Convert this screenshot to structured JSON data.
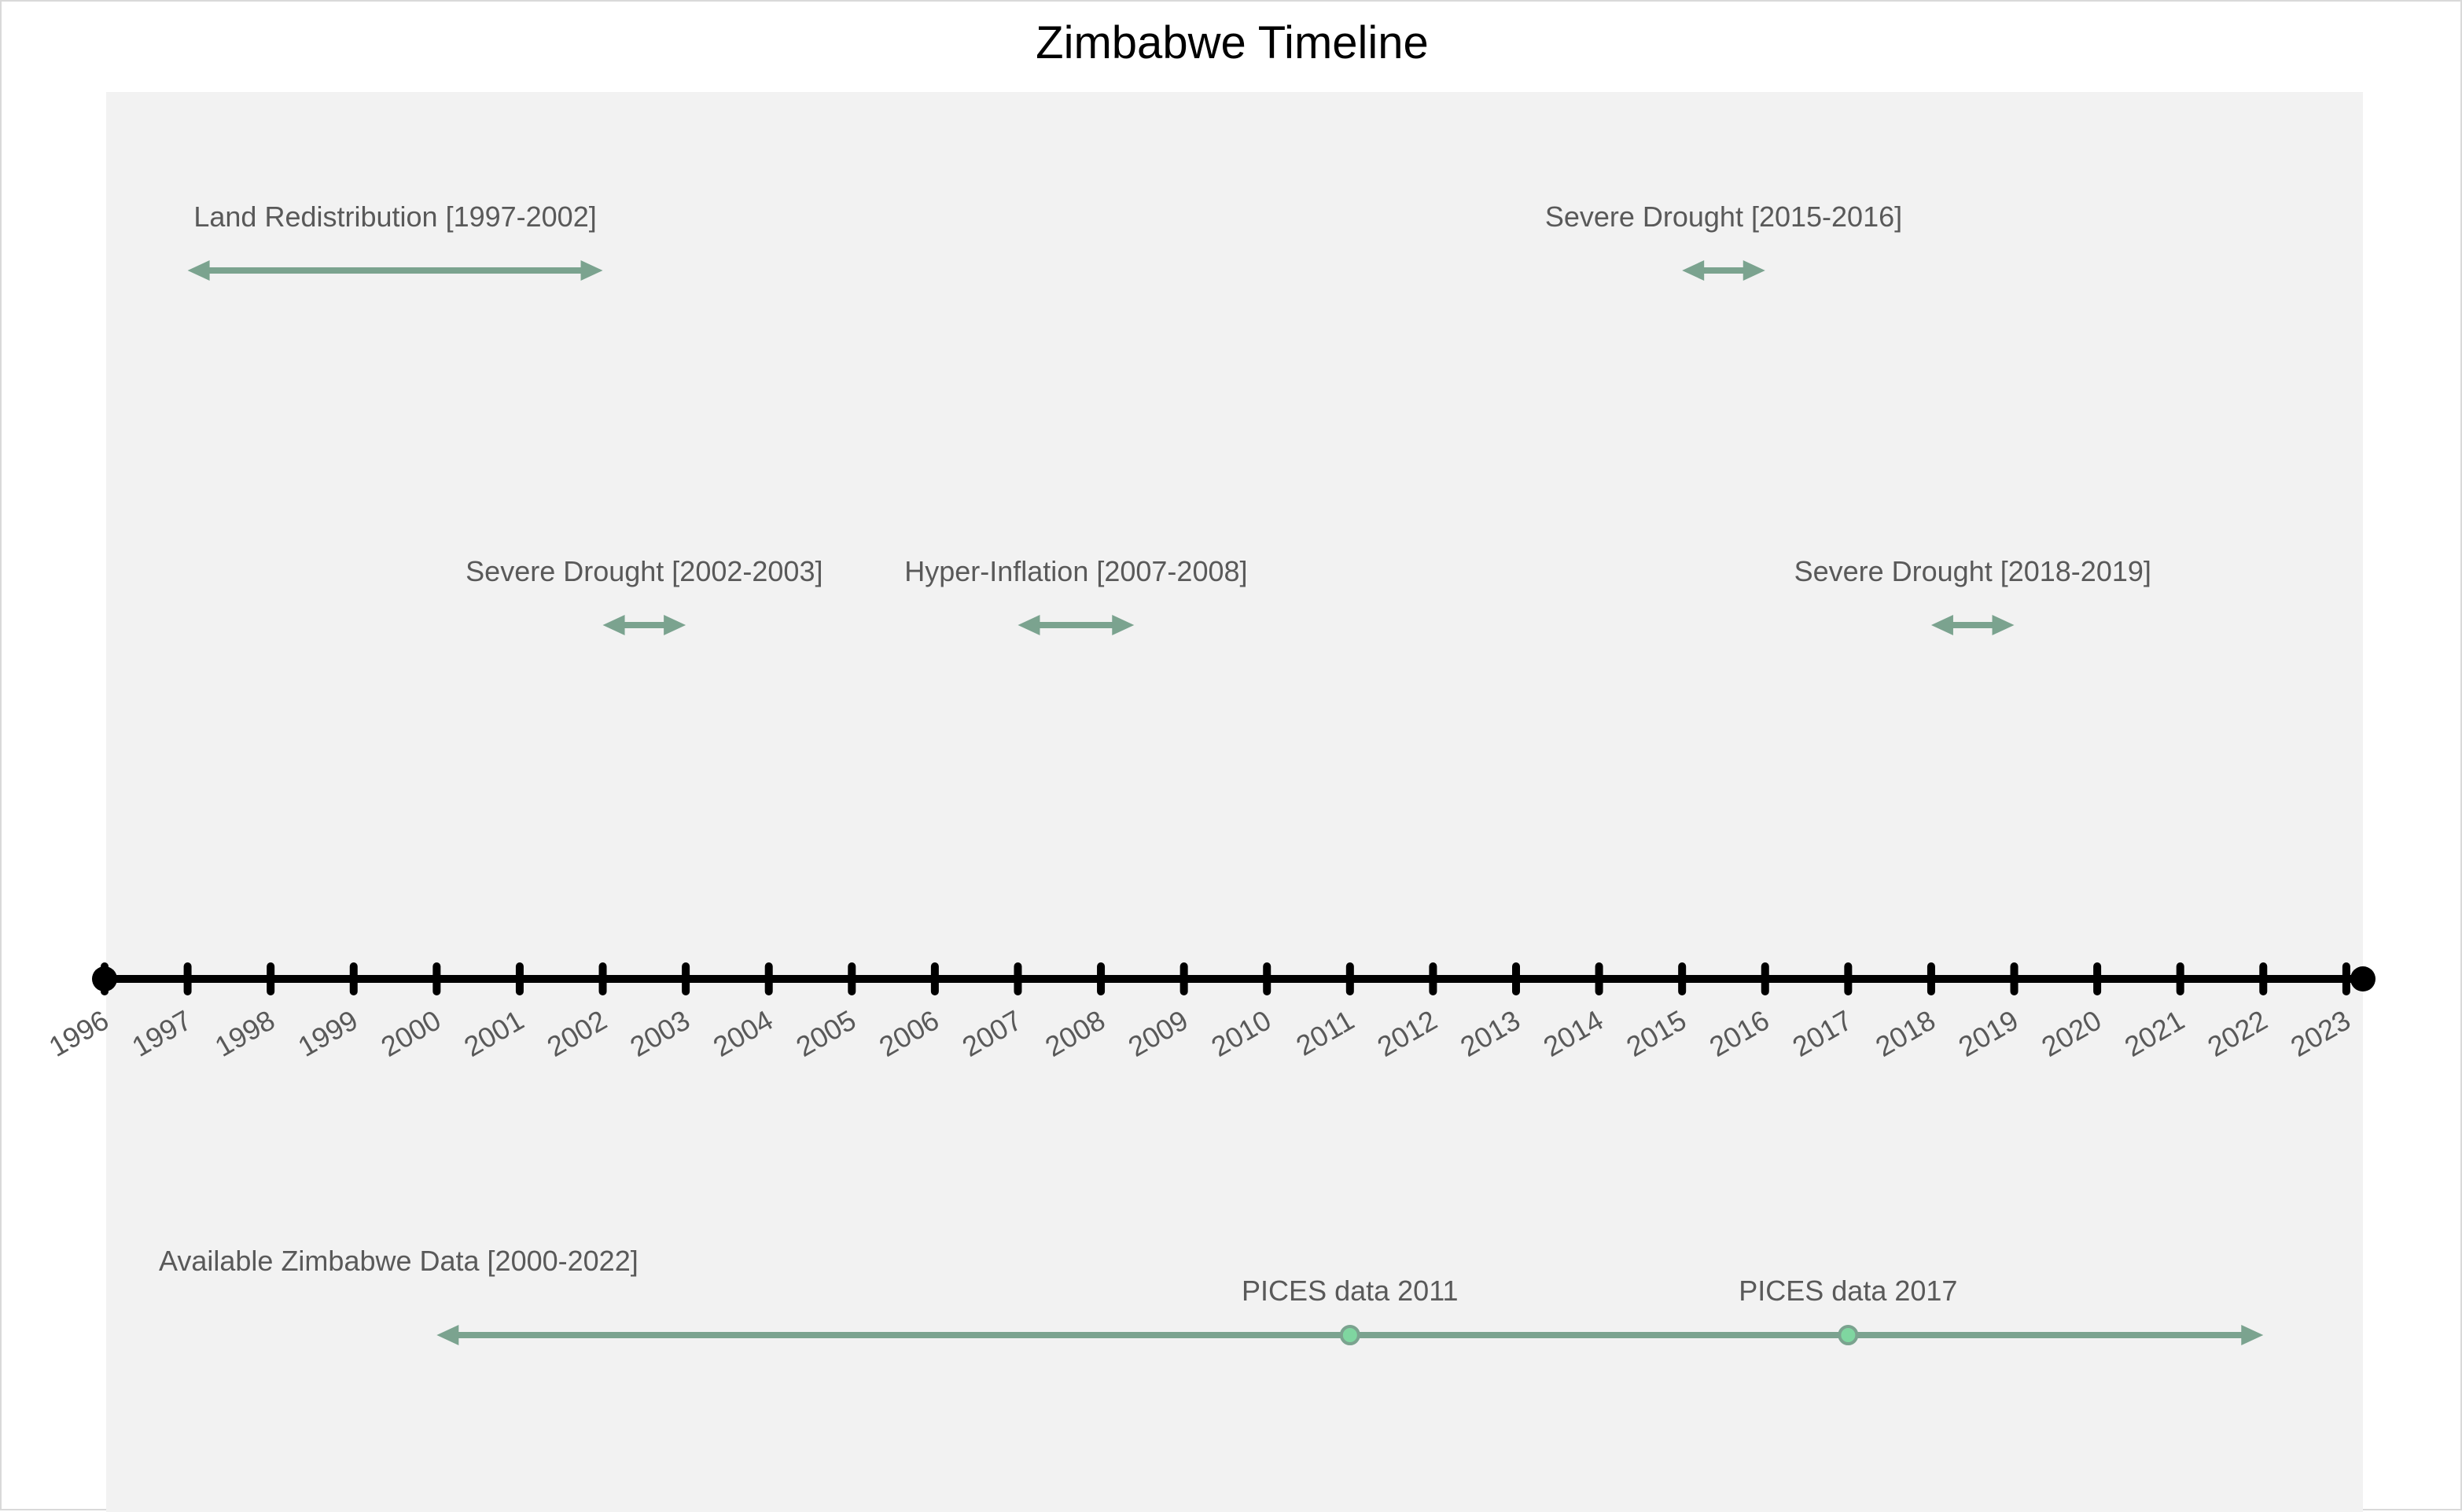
{
  "chart_data": {
    "type": "timeline",
    "title": "Zimbabwe Timeline",
    "xlim": [
      1996,
      2023.2
    ],
    "ticks": [
      1996,
      1997,
      1998,
      1999,
      2000,
      2001,
      2002,
      2003,
      2004,
      2005,
      2006,
      2007,
      2008,
      2009,
      2010,
      2011,
      2012,
      2013,
      2014,
      2015,
      2016,
      2017,
      2018,
      2019,
      2020,
      2021,
      2022,
      2023
    ],
    "tick_labels": [
      "1996",
      "1997",
      "1998",
      "1999",
      "2000",
      "2001",
      "2002",
      "2003",
      "2004",
      "2005",
      "2006",
      "2007",
      "2008",
      "2009",
      "2010",
      "2011",
      "2012",
      "2013",
      "2014",
      "2015",
      "2016",
      "2017",
      "2018",
      "2019",
      "2020",
      "2021",
      "2022",
      "2023"
    ],
    "arrow_color": "#7ba38f",
    "marker_color": "#7fd6a0",
    "axis_color": "#000000",
    "plot_background": "#f2f2f2",
    "events": [
      {
        "label": "Land Redistribution [1997-2002]",
        "start": 1997,
        "end": 2002,
        "row": "upper"
      },
      {
        "label": "Severe Drought [2015-2016]",
        "start": 2015,
        "end": 2016,
        "row": "upper"
      },
      {
        "label": "Severe Drought [2002-2003]",
        "start": 2002,
        "end": 2003,
        "row": "middle"
      },
      {
        "label": "Hyper-Inflation [2007-2008]",
        "start": 2007,
        "end": 2008.4,
        "row": "middle"
      },
      {
        "label": "Severe Drought [2018-2019]",
        "start": 2018,
        "end": 2019,
        "row": "middle"
      },
      {
        "label": "Available Zimbabwe Data [2000-2022]",
        "start": 2000,
        "end": 2022,
        "row": "lower"
      }
    ],
    "points": [
      {
        "label": "PICES data 2011",
        "x": 2011
      },
      {
        "label": "PICES data 2017",
        "x": 2017
      }
    ]
  }
}
